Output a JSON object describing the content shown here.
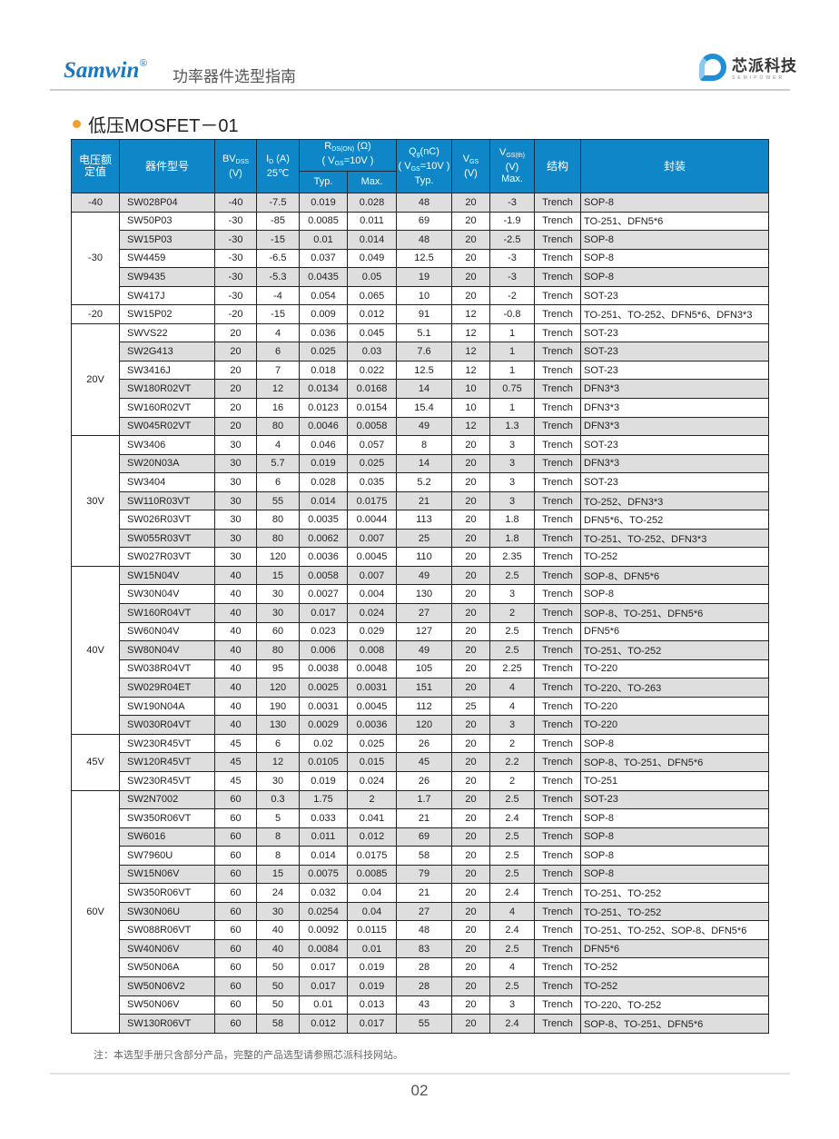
{
  "header": {
    "brand": "Samwin",
    "brand_mark": "®",
    "subtitle": "功率器件选型指南",
    "logo_cn": "芯派科技",
    "logo_en": "SEMIPOWER",
    "accent": "#1a78c2"
  },
  "section": {
    "title": "低压MOSFET－01",
    "bullet_color": "#f0a030"
  },
  "table": {
    "header_color": "#0e86c8",
    "headers": {
      "voltage": "电压额定值",
      "part": "器件型号",
      "bv": "BV",
      "bv_sub": "DSS",
      "bv_unit": "(V)",
      "id": "I",
      "id_sub": "D",
      "id_unit": "(A)",
      "id_temp": "25℃",
      "rds": "R",
      "rds_sub": "DS(ON)",
      "rds_unit": "(Ω)",
      "rds_cond": "( V",
      "rds_cond_sub": "GS",
      "rds_cond_val": "=10V )",
      "typ": "Typ.",
      "max": "Max.",
      "qg": "Q",
      "qg_sub": "g",
      "qg_unit": "(nC)",
      "qg_cond": "( V",
      "qg_cond_sub": "GS",
      "qg_cond_val": "=10V )",
      "qg_typ": "Typ.",
      "vgs": "V",
      "vgs_sub": "GS",
      "vgs_unit": "(V)",
      "vgsth": "V",
      "vgsth_sub": "GS(th)",
      "vgsth_unit": "(V)",
      "vgsth_max": "Max.",
      "structure": "结构",
      "package": "封装"
    },
    "groups": [
      {
        "label": "-40",
        "rows": [
          [
            "SW028P04",
            "-40",
            "-7.5",
            "0.019",
            "0.028",
            "48",
            "20",
            "-3",
            "Trench",
            "SOP-8"
          ]
        ]
      },
      {
        "label": "-30",
        "rows": [
          [
            "SW50P03",
            "-30",
            "-85",
            "0.0085",
            "0.011",
            "69",
            "20",
            "-1.9",
            "Trench",
            "TO-251、DFN5*6"
          ],
          [
            "SW15P03",
            "-30",
            "-15",
            "0.01",
            "0.014",
            "48",
            "20",
            "-2.5",
            "Trench",
            "SOP-8"
          ],
          [
            "SW4459",
            "-30",
            "-6.5",
            "0.037",
            "0.049",
            "12.5",
            "20",
            "-3",
            "Trench",
            "SOP-8"
          ],
          [
            "SW9435",
            "-30",
            "-5.3",
            "0.0435",
            "0.05",
            "19",
            "20",
            "-3",
            "Trench",
            "SOP-8"
          ],
          [
            "SW417J",
            "-30",
            "-4",
            "0.054",
            "0.065",
            "10",
            "20",
            "-2",
            "Trench",
            "SOT-23"
          ]
        ]
      },
      {
        "label": "-20",
        "rows": [
          [
            "SW15P02",
            "-20",
            "-15",
            "0.009",
            "0.012",
            "91",
            "12",
            "-0.8",
            "Trench",
            "TO-251、TO-252、DFN5*6、DFN3*3"
          ]
        ]
      },
      {
        "label": "20V",
        "rows": [
          [
            "SWVS22",
            "20",
            "4",
            "0.036",
            "0.045",
            "5.1",
            "12",
            "1",
            "Trench",
            "SOT-23"
          ],
          [
            "SW2G413",
            "20",
            "6",
            "0.025",
            "0.03",
            "7.6",
            "12",
            "1",
            "Trench",
            "SOT-23"
          ],
          [
            "SW3416J",
            "20",
            "7",
            "0.018",
            "0.022",
            "12.5",
            "12",
            "1",
            "Trench",
            "SOT-23"
          ],
          [
            "SW180R02VT",
            "20",
            "12",
            "0.0134",
            "0.0168",
            "14",
            "10",
            "0.75",
            "Trench",
            "DFN3*3"
          ],
          [
            "SW160R02VT",
            "20",
            "16",
            "0.0123",
            "0.0154",
            "15.4",
            "10",
            "1",
            "Trench",
            "DFN3*3"
          ],
          [
            "SW045R02VT",
            "20",
            "80",
            "0.0046",
            "0.0058",
            "49",
            "12",
            "1.3",
            "Trench",
            "DFN3*3"
          ]
        ]
      },
      {
        "label": "30V",
        "rows": [
          [
            "SW3406",
            "30",
            "4",
            "0.046",
            "0.057",
            "8",
            "20",
            "3",
            "Trench",
            "SOT-23"
          ],
          [
            "SW20N03A",
            "30",
            "5.7",
            "0.019",
            "0.025",
            "14",
            "20",
            "3",
            "Trench",
            "DFN3*3"
          ],
          [
            "SW3404",
            "30",
            "6",
            "0.028",
            "0.035",
            "5.2",
            "20",
            "3",
            "Trench",
            "SOT-23"
          ],
          [
            "SW110R03VT",
            "30",
            "55",
            "0.014",
            "0.0175",
            "21",
            "20",
            "3",
            "Trench",
            "TO-252、DFN3*3"
          ],
          [
            "SW026R03VT",
            "30",
            "80",
            "0.0035",
            "0.0044",
            "113",
            "20",
            "1.8",
            "Trench",
            "DFN5*6、TO-252"
          ],
          [
            "SW055R03VT",
            "30",
            "80",
            "0.0062",
            "0.007",
            "25",
            "20",
            "1.8",
            "Trench",
            "TO-251、TO-252、DFN3*3"
          ],
          [
            "SW027R03VT",
            "30",
            "120",
            "0.0036",
            "0.0045",
            "110",
            "20",
            "2.35",
            "Trench",
            "TO-252"
          ]
        ]
      },
      {
        "label": "40V",
        "rows": [
          [
            "SW15N04V",
            "40",
            "15",
            "0.0058",
            "0.007",
            "49",
            "20",
            "2.5",
            "Trench",
            "SOP-8、DFN5*6"
          ],
          [
            "SW30N04V",
            "40",
            "30",
            "0.0027",
            "0.004",
            "130",
            "20",
            "3",
            "Trench",
            "SOP-8"
          ],
          [
            "SW160R04VT",
            "40",
            "30",
            "0.017",
            "0.024",
            "27",
            "20",
            "2",
            "Trench",
            "SOP-8、TO-251、DFN5*6"
          ],
          [
            "SW60N04V",
            "40",
            "60",
            "0.023",
            "0.029",
            "127",
            "20",
            "2.5",
            "Trench",
            "DFN5*6"
          ],
          [
            "SW80N04V",
            "40",
            "80",
            "0.006",
            "0.008",
            "49",
            "20",
            "2.5",
            "Trench",
            "TO-251、TO-252"
          ],
          [
            "SW038R04VT",
            "40",
            "95",
            "0.0038",
            "0.0048",
            "105",
            "20",
            "2.25",
            "Trench",
            "TO-220"
          ],
          [
            "SW029R04ET",
            "40",
            "120",
            "0.0025",
            "0.0031",
            "151",
            "20",
            "4",
            "Trench",
            "TO-220、TO-263"
          ],
          [
            "SW190N04A",
            "40",
            "190",
            "0.0031",
            "0.0045",
            "112",
            "25",
            "4",
            "Trench",
            "TO-220"
          ],
          [
            "SW030R04VT",
            "40",
            "130",
            "0.0029",
            "0.0036",
            "120",
            "20",
            "3",
            "Trench",
            "TO-220"
          ]
        ]
      },
      {
        "label": "45V",
        "rows": [
          [
            "SW230R45VT",
            "45",
            "6",
            "0.02",
            "0.025",
            "26",
            "20",
            "2",
            "Trench",
            "SOP-8"
          ],
          [
            "SW120R45VT",
            "45",
            "12",
            "0.0105",
            "0.015",
            "45",
            "20",
            "2.2",
            "Trench",
            "SOP-8、TO-251、DFN5*6"
          ],
          [
            "SW230R45VT",
            "45",
            "30",
            "0.019",
            "0.024",
            "26",
            "20",
            "2",
            "Trench",
            "TO-251"
          ]
        ]
      },
      {
        "label": "60V",
        "rows": [
          [
            "SW2N7002",
            "60",
            "0.3",
            "1.75",
            "2",
            "1.7",
            "20",
            "2.5",
            "Trench",
            "SOT-23"
          ],
          [
            "SW350R06VT",
            "60",
            "5",
            "0.033",
            "0.041",
            "21",
            "20",
            "2.4",
            "Trench",
            "SOP-8"
          ],
          [
            "SW6016",
            "60",
            "8",
            "0.011",
            "0.012",
            "69",
            "20",
            "2.5",
            "Trench",
            "SOP-8"
          ],
          [
            "SW7960U",
            "60",
            "8",
            "0.014",
            "0.0175",
            "58",
            "20",
            "2.5",
            "Trench",
            "SOP-8"
          ],
          [
            "SW15N06V",
            "60",
            "15",
            "0.0075",
            "0.0085",
            "79",
            "20",
            "2.5",
            "Trench",
            "SOP-8"
          ],
          [
            "SW350R06VT",
            "60",
            "24",
            "0.032",
            "0.04",
            "21",
            "20",
            "2.4",
            "Trench",
            "TO-251、TO-252"
          ],
          [
            "SW30N06U",
            "60",
            "30",
            "0.0254",
            "0.04",
            "27",
            "20",
            "4",
            "Trench",
            "TO-251、TO-252"
          ],
          [
            "SW088R06VT",
            "60",
            "40",
            "0.0092",
            "0.0115",
            "48",
            "20",
            "2.4",
            "Trench",
            "TO-251、TO-252、SOP-8、DFN5*6"
          ],
          [
            "SW40N06V",
            "60",
            "40",
            "0.0084",
            "0.01",
            "83",
            "20",
            "2.5",
            "Trench",
            "DFN5*6"
          ],
          [
            "SW50N06A",
            "60",
            "50",
            "0.017",
            "0.019",
            "28",
            "20",
            "4",
            "Trench",
            "TO-252"
          ],
          [
            "SW50N06V2",
            "60",
            "50",
            "0.017",
            "0.019",
            "28",
            "20",
            "2.5",
            "Trench",
            "TO-252"
          ],
          [
            "SW50N06V",
            "60",
            "50",
            "0.01",
            "0.013",
            "43",
            "20",
            "3",
            "Trench",
            "TO-220、TO-252"
          ],
          [
            "SW130R06VT",
            "60",
            "58",
            "0.012",
            "0.017",
            "55",
            "20",
            "2.4",
            "Trench",
            "SOP-8、TO-251、DFN5*6"
          ]
        ]
      }
    ]
  },
  "footer": {
    "note": "注：本选型手册只含部分产品，完整的产品选型请参照芯派科技网站。",
    "page": "02"
  }
}
